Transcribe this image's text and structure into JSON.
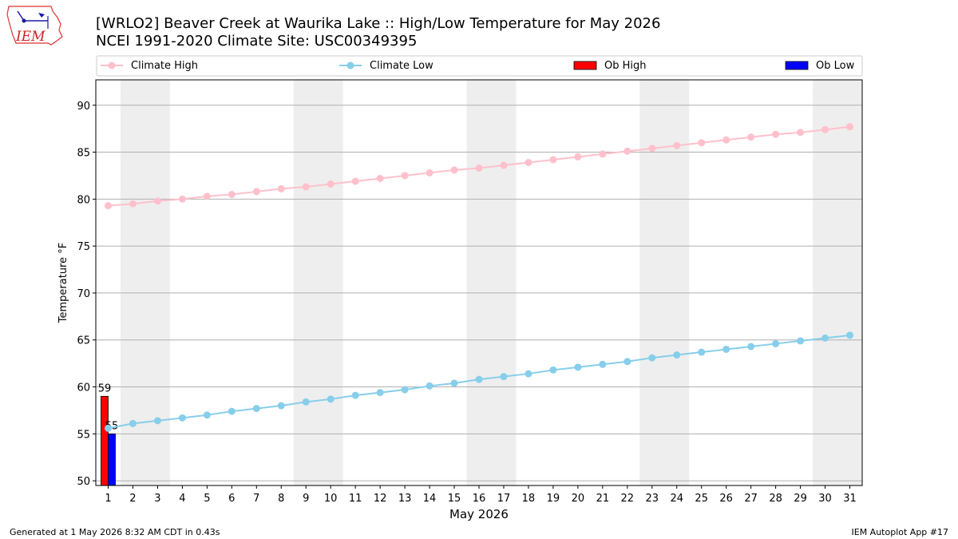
{
  "chart_data": {
    "type": "line",
    "title": "[WRLO2] Beaver Creek at Waurika Lake :: High/Low Temperature for May 2026",
    "subtitle": "NCEI 1991-2020 Climate Site: USC00349395",
    "xlabel": "May 2026",
    "ylabel": "Temperature °F",
    "xlim": [
      0.5,
      31.5
    ],
    "ylim": [
      49.5,
      92.7
    ],
    "yticks": [
      50,
      55,
      60,
      65,
      70,
      75,
      80,
      85,
      90
    ],
    "x": [
      1,
      2,
      3,
      4,
      5,
      6,
      7,
      8,
      9,
      10,
      11,
      12,
      13,
      14,
      15,
      16,
      17,
      18,
      19,
      20,
      21,
      22,
      23,
      24,
      25,
      26,
      27,
      28,
      29,
      30,
      31
    ],
    "weekend_bands": [
      [
        1.5,
        3.5
      ],
      [
        8.5,
        10.5
      ],
      [
        15.5,
        17.5
      ],
      [
        22.5,
        24.5
      ],
      [
        29.5,
        31.5
      ]
    ],
    "grid": "horizontal",
    "legend_position": "top",
    "series": [
      {
        "name": "Climate High",
        "kind": "line",
        "color": "#ffc0cb",
        "values": [
          79.3,
          79.5,
          79.8,
          80.0,
          80.3,
          80.5,
          80.8,
          81.1,
          81.3,
          81.6,
          81.9,
          82.2,
          82.5,
          82.8,
          83.1,
          83.3,
          83.6,
          83.9,
          84.2,
          84.5,
          84.8,
          85.1,
          85.4,
          85.7,
          86.0,
          86.3,
          86.6,
          86.9,
          87.1,
          87.4,
          87.7
        ]
      },
      {
        "name": "Climate Low",
        "kind": "line",
        "color": "#87ceeb",
        "values": [
          55.6,
          56.1,
          56.4,
          56.7,
          57.0,
          57.4,
          57.7,
          58.0,
          58.4,
          58.7,
          59.1,
          59.4,
          59.7,
          60.1,
          60.4,
          60.8,
          61.1,
          61.4,
          61.8,
          62.1,
          62.4,
          62.7,
          63.1,
          63.4,
          63.7,
          64.0,
          64.3,
          64.6,
          64.9,
          65.2,
          65.5
        ]
      },
      {
        "name": "Ob High",
        "kind": "bar",
        "color": "#ff0000",
        "points": [
          {
            "x": 1,
            "y": 59
          }
        ],
        "labels": [
          "59"
        ]
      },
      {
        "name": "Ob Low",
        "kind": "bar",
        "color": "#0000ff",
        "points": [
          {
            "x": 1,
            "y": 55
          }
        ],
        "labels": [
          "55"
        ]
      }
    ]
  },
  "logo": {
    "text": "IEM"
  },
  "footer": {
    "left": "Generated at 1 May 2026 8:32 AM CDT in 0.43s",
    "right": "IEM Autoplot App #17"
  }
}
